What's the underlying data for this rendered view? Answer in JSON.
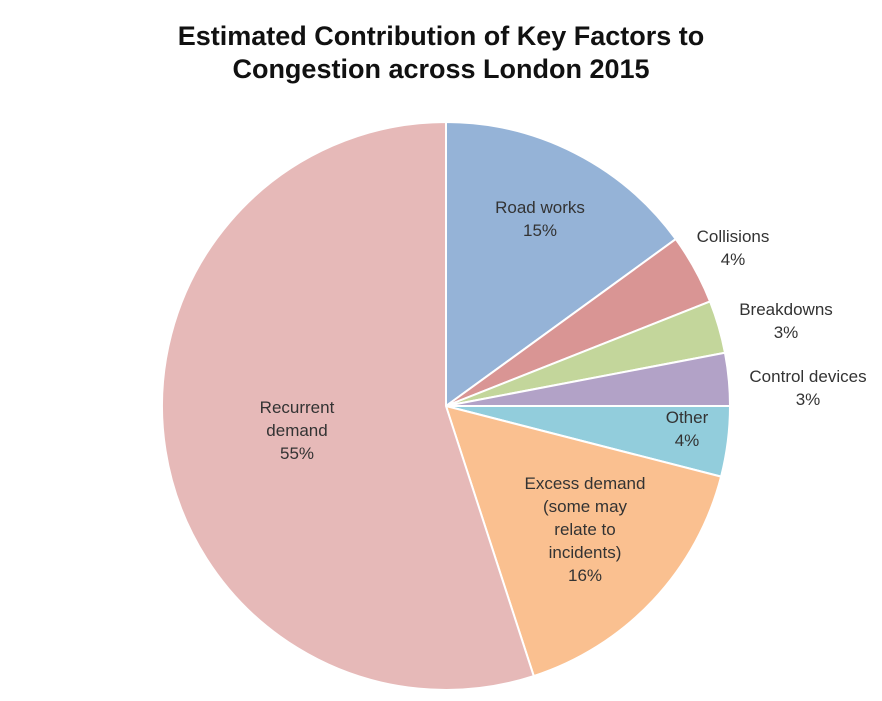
{
  "chart_data": {
    "type": "pie",
    "title_lines": [
      "Estimated Contribution of Key Factors to",
      "Congestion across London 2015"
    ],
    "slices": [
      {
        "name": "Road works",
        "label_lines": [
          "Road works",
          "15%"
        ],
        "value": 15,
        "color": "#95b3d7"
      },
      {
        "name": "Collisions",
        "label_lines": [
          "Collisions",
          "4%"
        ],
        "value": 4,
        "color": "#d99594"
      },
      {
        "name": "Breakdowns",
        "label_lines": [
          "Breakdowns",
          "3%"
        ],
        "value": 3,
        "color": "#c3d69b"
      },
      {
        "name": "Control devices",
        "label_lines": [
          "Control devices",
          "3%"
        ],
        "value": 3,
        "color": "#b2a2c7"
      },
      {
        "name": "Other",
        "label_lines": [
          "Other",
          "4%"
        ],
        "value": 4,
        "color": "#92cddc"
      },
      {
        "name": "Excess demand (some may relate to incidents)",
        "label_lines": [
          "Excess demand",
          "(some may",
          "relate to",
          "incidents)",
          "16%"
        ],
        "value": 16,
        "color": "#fac090"
      },
      {
        "name": "Recurrent demand",
        "label_lines": [
          "Recurrent",
          "demand",
          "55%"
        ],
        "value": 55,
        "color": "#e6b9b8"
      }
    ],
    "start_angle_deg": 0,
    "direction": "clockwise",
    "slice_border_color": "#ffffff"
  }
}
